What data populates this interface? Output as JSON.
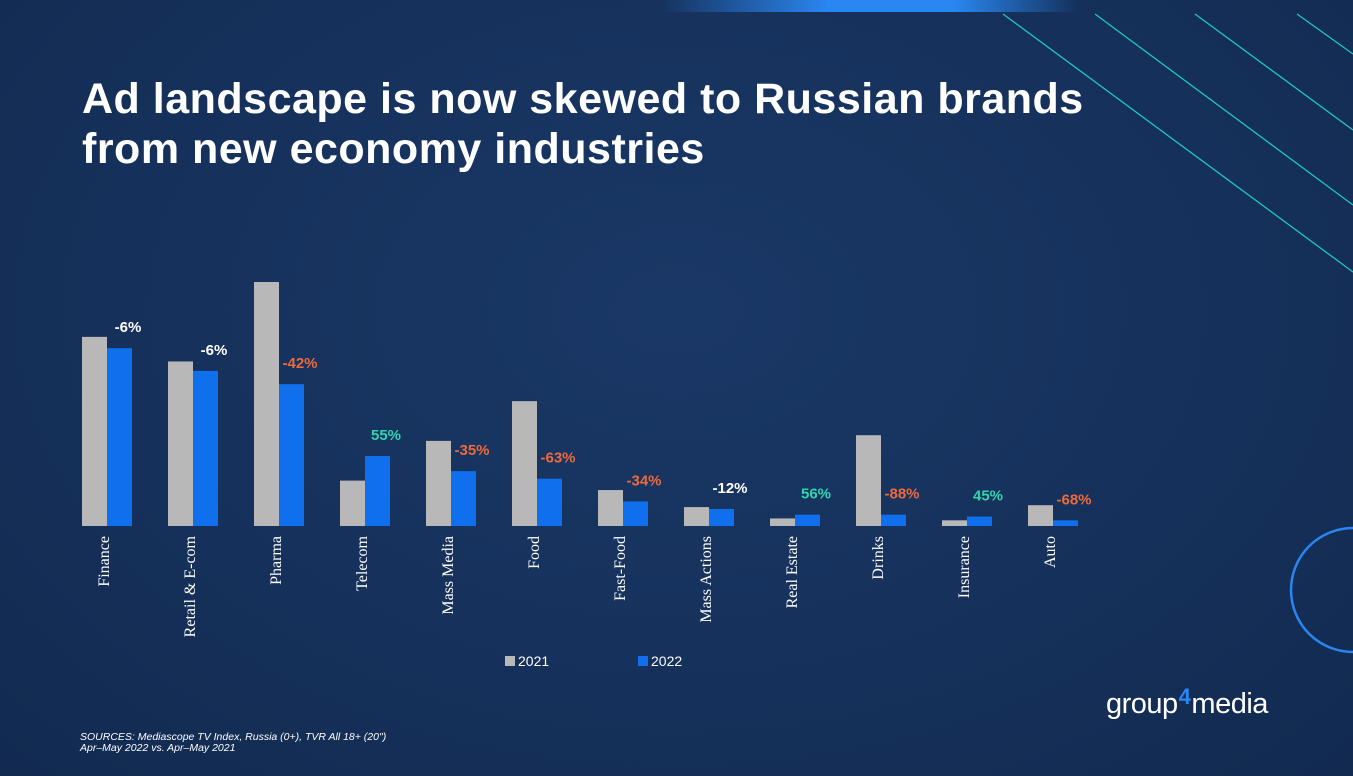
{
  "title": "Ad landscape is now skewed to Russian brands from new economy industries",
  "sources": {
    "line1": "SOURCES: Mediascope TV Index, Russia (0+), TVR All 18+ (20\")",
    "line2": "Apr–May 2022 vs. Apr–May 2021"
  },
  "logo": {
    "part1": "group",
    "part2": "4",
    "part3": "media"
  },
  "colors": {
    "series_2021": "#b8b8b8",
    "series_2022": "#0f6fec",
    "negative_small": "#ffffff",
    "negative_large": "#ee6a3c",
    "positive": "#2fd6b0"
  },
  "chart_data": {
    "type": "bar",
    "categories": [
      "Finance",
      "Retail & E-com",
      "Pharma",
      "Telecom",
      "Mass Media",
      "Food",
      "Fast-Food",
      "Mass Actions",
      "Real Estate",
      "Drinks",
      "Insurance",
      "Auto"
    ],
    "series": [
      {
        "name": "2021",
        "values": [
          100,
          87,
          129,
          24,
          45,
          66,
          19,
          10,
          4,
          48,
          3,
          11
        ]
      },
      {
        "name": "2022",
        "values": [
          94,
          82,
          75,
          37,
          29,
          25,
          13,
          9,
          6,
          6,
          5,
          3
        ]
      }
    ],
    "data_labels": [
      "-6%",
      "-6%",
      "-42%",
      "55%",
      "-35%",
      "-63%",
      "-34%",
      "-12%",
      "56%",
      "-88%",
      "45%",
      "-68%"
    ],
    "label_colors": [
      "negative_small",
      "negative_small",
      "negative_large",
      "positive",
      "negative_large",
      "negative_large",
      "negative_large",
      "negative_small",
      "positive",
      "negative_large",
      "positive",
      "negative_large"
    ],
    "ylim": [
      0,
      129
    ],
    "grid": false,
    "legend_position": "bottom-center"
  }
}
